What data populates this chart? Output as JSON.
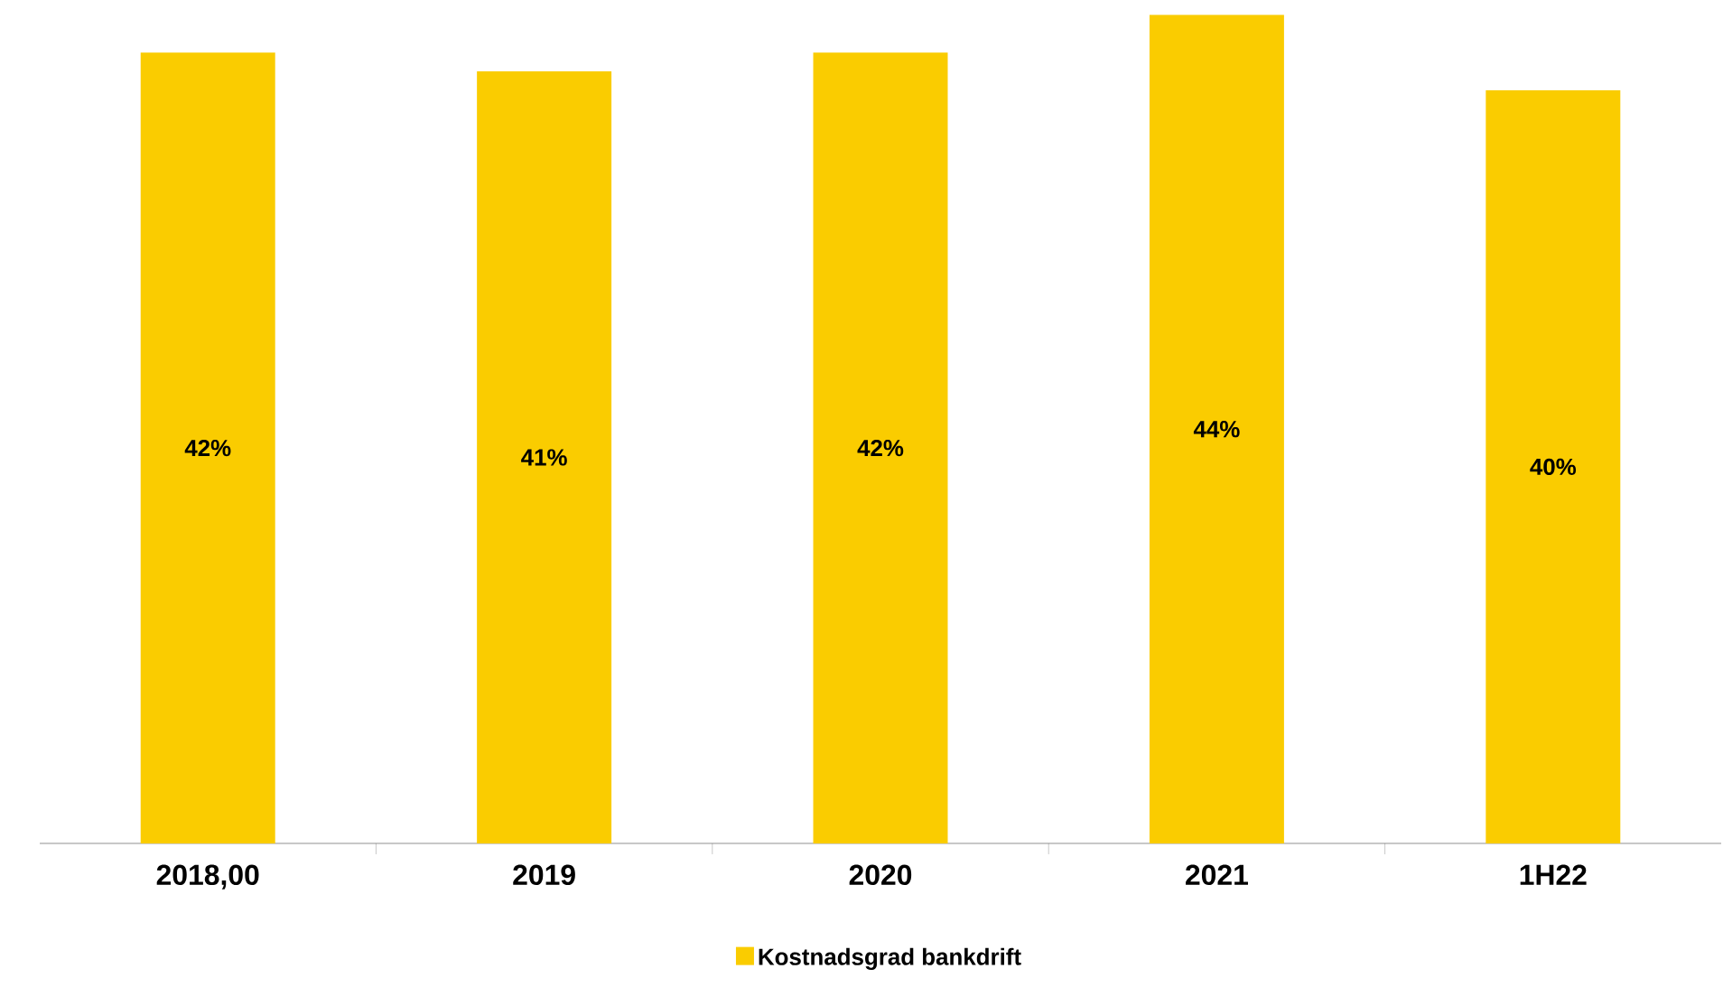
{
  "chart_data": {
    "type": "bar",
    "categories": [
      "2018,00",
      "2019",
      "2020",
      "2021",
      "1H22"
    ],
    "series": [
      {
        "name": "Kostnadsgrad bankdrift",
        "color": "#facc00",
        "values": [
          42,
          41,
          42,
          44,
          40
        ],
        "value_labels": [
          "42%",
          "41%",
          "42%",
          "44%",
          "40%"
        ]
      }
    ],
    "legend": "bottom",
    "grid": false
  }
}
